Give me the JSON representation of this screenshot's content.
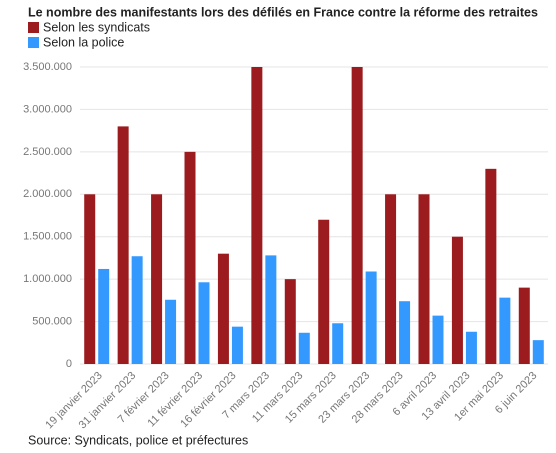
{
  "chart_data": {
    "type": "bar",
    "title": "Le nombre des manifestants lors des défilés en France contre la réforme des retraites",
    "source": "Source: Syndicats, police et préfectures",
    "categories": [
      "19 janvier 2023",
      "31 janvier 2023",
      "7 février 2023",
      "11 février 2023",
      "16 février 2023",
      "7 mars 2023",
      "11 mars 2023",
      "15 mars 2023",
      "23 mars 2023",
      "28 mars 2023",
      "6 avril 2023",
      "13 avril 2023",
      "1er mai 2023",
      "6 juin 2023"
    ],
    "series": [
      {
        "name": "Selon les syndicats",
        "color": "#9b1b1e",
        "values": [
          2000000,
          2800000,
          2000000,
          2500000,
          1300000,
          3500000,
          1000000,
          1700000,
          3500000,
          2000000,
          2000000,
          1500000,
          2300000,
          900000
        ]
      },
      {
        "name": "Selon la police",
        "color": "#3399ff",
        "values": [
          1120000,
          1270000,
          757000,
          963000,
          440000,
          1280000,
          368000,
          480000,
          1090000,
          740000,
          570000,
          380000,
          782000,
          281000
        ]
      }
    ],
    "ylim": [
      0,
      3500000
    ],
    "yticks": [
      0,
      {
        "value": 500000,
        "label": "500.000"
      },
      {
        "value": 1000000,
        "label": "1.000.000"
      },
      {
        "value": 1500000,
        "label": "1.500.000"
      },
      {
        "value": 2000000,
        "label": "2.000.000"
      },
      {
        "value": 2500000,
        "label": "2.500.000"
      },
      {
        "value": 3000000,
        "label": "3.000.000"
      },
      {
        "value": 3500000,
        "label": "3.500.000"
      }
    ],
    "grid": true
  }
}
